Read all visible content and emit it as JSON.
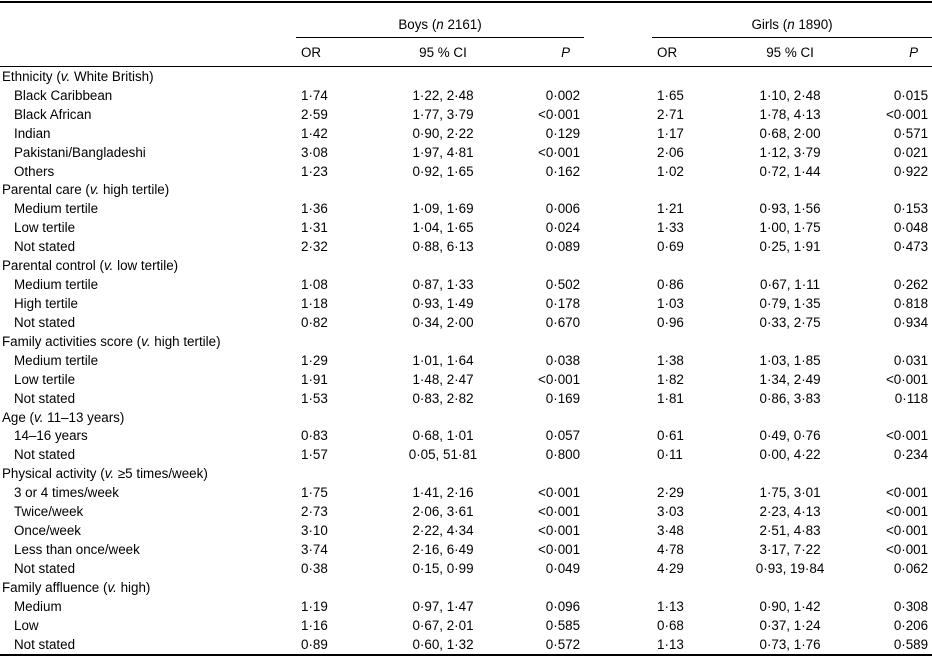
{
  "table": {
    "groups": [
      {
        "pre": "Boys (",
        "it": "n",
        "post": " 2161)"
      },
      {
        "pre": "Girls (",
        "it": "n",
        "post": " 1890)"
      }
    ],
    "columns": {
      "or": "OR",
      "ci": "95 % CI",
      "p": "P"
    },
    "sections": [
      {
        "header": {
          "pre": "Ethnicity (",
          "it": "v.",
          "post": " White British)"
        },
        "rows": [
          {
            "label": "Black Caribbean",
            "boys": {
              "or": "1·74",
              "ci": "1·22, 2·48",
              "p": "0·002"
            },
            "girls": {
              "or": "1·65",
              "ci": "1·10, 2·48",
              "p": "0·015"
            }
          },
          {
            "label": "Black African",
            "boys": {
              "or": "2·59",
              "ci": "1·77, 3·79",
              "p": "<0·001"
            },
            "girls": {
              "or": "2·71",
              "ci": "1·78, 4·13",
              "p": "<0·001"
            }
          },
          {
            "label": "Indian",
            "boys": {
              "or": "1·42",
              "ci": "0·90, 2·22",
              "p": "0·129"
            },
            "girls": {
              "or": "1·17",
              "ci": "0·68, 2·00",
              "p": "0·571"
            }
          },
          {
            "label": "Pakistani/Bangladeshi",
            "boys": {
              "or": "3·08",
              "ci": "1·97, 4·81",
              "p": "<0·001"
            },
            "girls": {
              "or": "2·06",
              "ci": "1·12, 3·79",
              "p": "0·021"
            }
          },
          {
            "label": "Others",
            "boys": {
              "or": "1·23",
              "ci": "0·92, 1·65",
              "p": "0·162"
            },
            "girls": {
              "or": "1·02",
              "ci": "0·72, 1·44",
              "p": "0·922"
            }
          }
        ]
      },
      {
        "header": {
          "pre": "Parental care (",
          "it": "v.",
          "post": " high tertile)"
        },
        "rows": [
          {
            "label": "Medium tertile",
            "boys": {
              "or": "1·36",
              "ci": "1·09, 1·69",
              "p": "0·006"
            },
            "girls": {
              "or": "1·21",
              "ci": "0·93, 1·56",
              "p": "0·153"
            }
          },
          {
            "label": "Low tertile",
            "boys": {
              "or": "1·31",
              "ci": "1·04, 1·65",
              "p": "0·024"
            },
            "girls": {
              "or": "1·33",
              "ci": "1·00, 1·75",
              "p": "0·048"
            }
          },
          {
            "label": "Not stated",
            "boys": {
              "or": "2·32",
              "ci": "0·88, 6·13",
              "p": "0·089"
            },
            "girls": {
              "or": "0·69",
              "ci": "0·25, 1·91",
              "p": "0·473"
            }
          }
        ]
      },
      {
        "header": {
          "pre": "Parental control (",
          "it": "v.",
          "post": " low tertile)"
        },
        "rows": [
          {
            "label": "Medium tertile",
            "boys": {
              "or": "1·08",
              "ci": "0·87, 1·33",
              "p": "0·502"
            },
            "girls": {
              "or": "0·86",
              "ci": "0·67, 1·11",
              "p": "0·262"
            }
          },
          {
            "label": "High tertile",
            "boys": {
              "or": "1·18",
              "ci": "0·93, 1·49",
              "p": "0·178"
            },
            "girls": {
              "or": "1·03",
              "ci": "0·79, 1·35",
              "p": "0·818"
            }
          },
          {
            "label": "Not stated",
            "boys": {
              "or": "0·82",
              "ci": "0·34, 2·00",
              "p": "0·670"
            },
            "girls": {
              "or": "0·96",
              "ci": "0·33, 2·75",
              "p": "0·934"
            }
          }
        ]
      },
      {
        "header": {
          "pre": "Family activities score (",
          "it": "v.",
          "post": " high tertile)"
        },
        "rows": [
          {
            "label": "Medium tertile",
            "boys": {
              "or": "1·29",
              "ci": "1·01, 1·64",
              "p": "0·038"
            },
            "girls": {
              "or": "1·38",
              "ci": "1·03, 1·85",
              "p": "0·031"
            }
          },
          {
            "label": "Low tertile",
            "boys": {
              "or": "1·91",
              "ci": "1·48, 2·47",
              "p": "<0·001"
            },
            "girls": {
              "or": "1·82",
              "ci": "1·34, 2·49",
              "p": "<0·001"
            }
          },
          {
            "label": "Not stated",
            "boys": {
              "or": "1·53",
              "ci": "0·83, 2·82",
              "p": "0·169"
            },
            "girls": {
              "or": "1·81",
              "ci": "0·86, 3·83",
              "p": "0·118"
            }
          }
        ]
      },
      {
        "header": {
          "pre": "Age (",
          "it": "v.",
          "post": " 11–13 years)"
        },
        "rows": [
          {
            "label": "14–16 years",
            "boys": {
              "or": "0·83",
              "ci": "0·68, 1·01",
              "p": "0·057"
            },
            "girls": {
              "or": "0·61",
              "ci": "0·49, 0·76",
              "p": "<0·001"
            }
          },
          {
            "label": "Not stated",
            "boys": {
              "or": "1·57",
              "ci": "0·05, 51·81",
              "p": "0·800"
            },
            "girls": {
              "or": "0·11",
              "ci": "0·00, 4·22",
              "p": "0·234"
            }
          }
        ]
      },
      {
        "header": {
          "pre": "Physical activity (",
          "it": "v.",
          "post": " ≥5 times/week)"
        },
        "rows": [
          {
            "label": "3 or 4 times/week",
            "boys": {
              "or": "1·75",
              "ci": "1·41, 2·16",
              "p": "<0·001"
            },
            "girls": {
              "or": "2·29",
              "ci": "1·75, 3·01",
              "p": "<0·001"
            }
          },
          {
            "label": "Twice/week",
            "boys": {
              "or": "2·73",
              "ci": "2·06, 3·61",
              "p": "<0·001"
            },
            "girls": {
              "or": "3·03",
              "ci": "2·23, 4·13",
              "p": "<0·001"
            }
          },
          {
            "label": "Once/week",
            "boys": {
              "or": "3·10",
              "ci": "2·22, 4·34",
              "p": "<0·001"
            },
            "girls": {
              "or": "3·48",
              "ci": "2·51, 4·83",
              "p": "<0·001"
            }
          },
          {
            "label": "Less than once/week",
            "boys": {
              "or": "3·74",
              "ci": "2·16, 6·49",
              "p": "<0·001"
            },
            "girls": {
              "or": "4·78",
              "ci": "3·17, 7·22",
              "p": "<0·001"
            }
          },
          {
            "label": "Not stated",
            "boys": {
              "or": "0·38",
              "ci": "0·15, 0·99",
              "p": "0·049"
            },
            "girls": {
              "or": "4·29",
              "ci": "0·93, 19·84",
              "p": "0·062"
            }
          }
        ]
      },
      {
        "header": {
          "pre": "Family affluence (",
          "it": "v.",
          "post": " high)"
        },
        "rows": [
          {
            "label": "Medium",
            "boys": {
              "or": "1·19",
              "ci": "0·97, 1·47",
              "p": "0·096"
            },
            "girls": {
              "or": "1·13",
              "ci": "0·90, 1·42",
              "p": "0·308"
            }
          },
          {
            "label": "Low",
            "boys": {
              "or": "1·16",
              "ci": "0·67, 2·01",
              "p": "0·585"
            },
            "girls": {
              "or": "0·68",
              "ci": "0·37, 1·24",
              "p": "0·206"
            }
          },
          {
            "label": "Not stated",
            "boys": {
              "or": "0·89",
              "ci": "0·60, 1·32",
              "p": "0·572"
            },
            "girls": {
              "or": "1·13",
              "ci": "0·73, 1·76",
              "p": "0·589"
            }
          }
        ]
      }
    ]
  }
}
